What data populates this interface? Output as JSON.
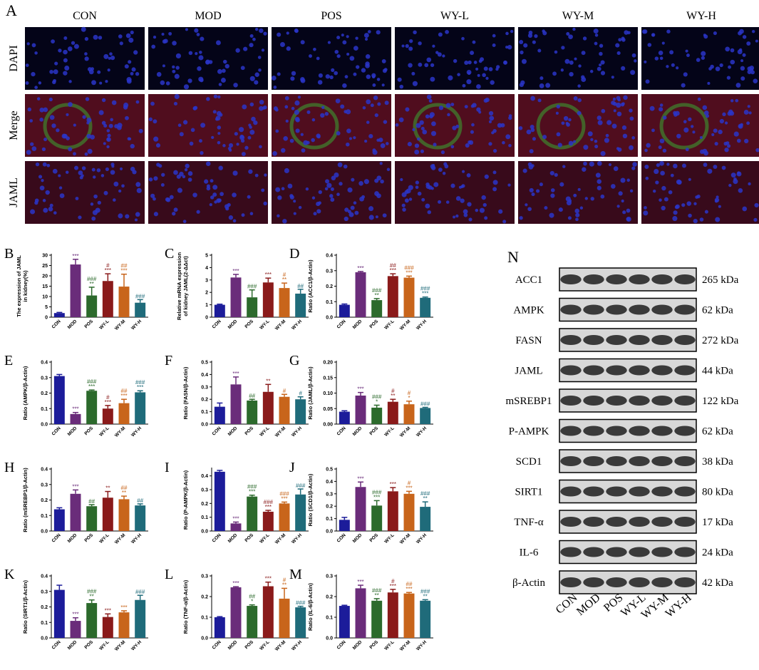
{
  "panel_a": {
    "label": "A",
    "columns": [
      "CON",
      "MOD",
      "POS",
      "WY-L",
      "WY-M",
      "WY-H"
    ],
    "rows": [
      "DAPI",
      "Merge",
      "JAML"
    ]
  },
  "chart_data": [
    {
      "type": "bar",
      "panel_label": "B",
      "y_label": [
        "The expression of JAML",
        "in kidney(%)"
      ],
      "categories": [
        "CON",
        "MOD",
        "POS",
        "WY-L",
        "WY-M",
        "WY-H"
      ],
      "colors": [
        "#1c1c9a",
        "#6a2c7a",
        "#2c6a2c",
        "#8a1a1a",
        "#c8651b",
        "#1f6b7a"
      ],
      "values": [
        2,
        25.5,
        10.5,
        17.5,
        14.8,
        7
      ],
      "errors": [
        0.3,
        2.5,
        4,
        3.5,
        6,
        1.5
      ],
      "annotations": [
        [],
        [
          "***"
        ],
        [
          "###",
          "**"
        ],
        [
          "#",
          "***"
        ],
        [
          "##",
          "***"
        ],
        [
          "###"
        ]
      ],
      "ylim": [
        0,
        30
      ],
      "yticks": [
        0,
        5,
        10,
        15,
        20,
        25,
        30
      ]
    },
    {
      "type": "bar",
      "panel_label": "C",
      "y_label": [
        "Relative mRNA expression",
        "of kidney JAML(2-ΔΔct)"
      ],
      "categories": [
        "CON",
        "MOD",
        "POS",
        "WY-L",
        "WY-M",
        "WY-H"
      ],
      "colors": [
        "#1c1c9a",
        "#6a2c7a",
        "#2c6a2c",
        "#8a1a1a",
        "#c8651b",
        "#1f6b7a"
      ],
      "values": [
        1.0,
        3.2,
        1.6,
        2.8,
        2.35,
        1.9
      ],
      "errors": [
        0.05,
        0.25,
        0.6,
        0.35,
        0.4,
        0.35
      ],
      "annotations": [
        [],
        [
          "***"
        ],
        [
          "###"
        ],
        [
          "***"
        ],
        [
          "#",
          "**"
        ],
        [
          "##"
        ]
      ],
      "ylim": [
        0,
        5
      ],
      "yticks": [
        0,
        1,
        2,
        3,
        4,
        5
      ]
    },
    {
      "type": "bar",
      "panel_label": "D",
      "y_label": [
        "Ratio (ACC1/β-Actin)"
      ],
      "categories": [
        "CON",
        "MOD",
        "POS",
        "WY-L",
        "WY-M",
        "WY-H"
      ],
      "colors": [
        "#1c1c9a",
        "#6a2c7a",
        "#2c6a2c",
        "#8a1a1a",
        "#c8651b",
        "#1f6b7a"
      ],
      "values": [
        0.08,
        0.29,
        0.11,
        0.265,
        0.255,
        0.125
      ],
      "errors": [
        0.005,
        0.005,
        0.01,
        0.015,
        0.01,
        0.005
      ],
      "annotations": [
        [],
        [
          "***"
        ],
        [
          "###",
          "**"
        ],
        [
          "##",
          "***"
        ],
        [
          "###",
          "***"
        ],
        [
          "###",
          "***"
        ]
      ],
      "ylim": [
        0,
        0.4
      ],
      "yticks": [
        {
          "value": 0,
          "label": "0.0"
        },
        0.1,
        0.2,
        0.3,
        0.4
      ]
    },
    {
      "type": "bar",
      "panel_label": "E",
      "y_label": [
        "Ratio (AMPK/β-Actin)"
      ],
      "categories": [
        "CON",
        "MOD",
        "POS",
        "WY-L",
        "WY-M",
        "WY-H"
      ],
      "colors": [
        "#1c1c9a",
        "#6a2c7a",
        "#2c6a2c",
        "#8a1a1a",
        "#c8651b",
        "#1f6b7a"
      ],
      "values": [
        0.31,
        0.065,
        0.215,
        0.1,
        0.135,
        0.205
      ],
      "errors": [
        0.01,
        0.01,
        0.005,
        0.02,
        0.025,
        0.01
      ],
      "annotations": [
        [],
        [
          "***"
        ],
        [
          "###",
          "***"
        ],
        [
          "#",
          "***"
        ],
        [
          "##",
          "***"
        ],
        [
          "###",
          "***"
        ]
      ],
      "ylim": [
        0,
        0.4
      ],
      "yticks": [
        {
          "value": 0,
          "label": "0.0"
        },
        0.1,
        0.2,
        0.3,
        0.4
      ]
    },
    {
      "type": "bar",
      "panel_label": "F",
      "y_label": [
        "Ratio (FASN/β-Actin)"
      ],
      "categories": [
        "CON",
        "MOD",
        "POS",
        "WY-L",
        "WY-M",
        "WY-H"
      ],
      "colors": [
        "#1c1c9a",
        "#6a2c7a",
        "#2c6a2c",
        "#8a1a1a",
        "#c8651b",
        "#1f6b7a"
      ],
      "values": [
        0.14,
        0.32,
        0.19,
        0.26,
        0.22,
        0.2
      ],
      "errors": [
        0.03,
        0.06,
        0.01,
        0.06,
        0.02,
        0.02
      ],
      "annotations": [
        [],
        [
          "***"
        ],
        [
          "##"
        ],
        [
          "**"
        ],
        [
          "#"
        ],
        [
          "#"
        ]
      ],
      "ylim": [
        0,
        0.5
      ],
      "yticks": [
        {
          "value": 0,
          "label": "0.0"
        },
        0.1,
        0.2,
        0.3,
        0.4,
        0.5
      ]
    },
    {
      "type": "bar",
      "panel_label": "G",
      "y_label": [
        "Ratio (JAML/β-Actin)"
      ],
      "categories": [
        "CON",
        "MOD",
        "POS",
        "WY-L",
        "WY-M",
        "WY-H"
      ],
      "colors": [
        "#1c1c9a",
        "#6a2c7a",
        "#2c6a2c",
        "#8a1a1a",
        "#c8651b",
        "#1f6b7a"
      ],
      "values": [
        0.04,
        0.092,
        0.053,
        0.072,
        0.064,
        0.052
      ],
      "errors": [
        0.003,
        0.01,
        0.008,
        0.008,
        0.01,
        0.002
      ],
      "annotations": [
        [],
        [
          "***"
        ],
        [
          "###",
          "*"
        ],
        [
          "#",
          "**"
        ],
        [
          "#",
          "*"
        ],
        [
          "###"
        ]
      ],
      "ylim": [
        0,
        0.2
      ],
      "yticks": [
        {
          "value": 0,
          "label": "0.00"
        },
        0.05,
        {
          "value": 0.1,
          "label": "0.10"
        },
        0.15,
        {
          "value": 0.2,
          "label": "0.20"
        }
      ]
    },
    {
      "type": "bar",
      "panel_label": "H",
      "y_label": [
        "Ratio (mSREBP1/β-Actin)"
      ],
      "categories": [
        "CON",
        "MOD",
        "POS",
        "WY-L",
        "WY-M",
        "WY-H"
      ],
      "colors": [
        "#1c1c9a",
        "#6a2c7a",
        "#2c6a2c",
        "#8a1a1a",
        "#c8651b",
        "#1f6b7a"
      ],
      "values": [
        0.14,
        0.24,
        0.16,
        0.215,
        0.205,
        0.165
      ],
      "errors": [
        0.01,
        0.025,
        0.01,
        0.04,
        0.02,
        0.01
      ],
      "annotations": [
        [],
        [
          "***"
        ],
        [
          "##"
        ],
        [
          "**"
        ],
        [
          "##",
          "**"
        ],
        [
          "##"
        ]
      ],
      "ylim": [
        0,
        0.4
      ],
      "yticks": [
        {
          "value": 0,
          "label": "0.0"
        },
        0.1,
        0.2,
        0.3,
        0.4
      ]
    },
    {
      "type": "bar",
      "panel_label": "I",
      "y_label": [
        "Ratio (P-AMPK/β-Actin)"
      ],
      "categories": [
        "CON",
        "MOD",
        "POS",
        "WY-L",
        "WY-M",
        "WY-H"
      ],
      "colors": [
        "#1c1c9a",
        "#6a2c7a",
        "#2c6a2c",
        "#8a1a1a",
        "#c8651b",
        "#1f6b7a"
      ],
      "values": [
        0.43,
        0.055,
        0.25,
        0.14,
        0.2,
        0.265
      ],
      "errors": [
        0.01,
        0.01,
        0.01,
        0.01,
        0.01,
        0.04
      ],
      "annotations": [
        [],
        [
          "***"
        ],
        [
          "###",
          "***"
        ],
        [
          "###",
          "***"
        ],
        [
          "###",
          "***"
        ],
        [
          "###"
        ]
      ],
      "ylim": [
        0,
        0.45
      ],
      "yticks": [
        {
          "value": 0,
          "label": "0.0"
        },
        0.1,
        0.2,
        0.3,
        0.4
      ]
    },
    {
      "type": "bar",
      "panel_label": "J",
      "y_label": [
        "Ratio (SCD1/β-Actin)"
      ],
      "categories": [
        "CON",
        "MOD",
        "POS",
        "WY-L",
        "WY-M",
        "WY-H"
      ],
      "colors": [
        "#1c1c9a",
        "#6a2c7a",
        "#2c6a2c",
        "#8a1a1a",
        "#c8651b",
        "#1f6b7a"
      ],
      "values": [
        0.09,
        0.355,
        0.205,
        0.32,
        0.3,
        0.195
      ],
      "errors": [
        0.02,
        0.04,
        0.04,
        0.03,
        0.02,
        0.04
      ],
      "annotations": [
        [],
        [
          "***"
        ],
        [
          "###",
          "***"
        ],
        [
          "***"
        ],
        [
          "#",
          "***"
        ],
        [
          "###",
          "**"
        ]
      ],
      "ylim": [
        0,
        0.5
      ],
      "yticks": [
        {
          "value": 0,
          "label": "0.0"
        },
        0.1,
        0.2,
        0.3,
        0.4,
        0.5
      ]
    },
    {
      "type": "bar",
      "panel_label": "K",
      "y_label": [
        "Ratio (SIRT1/β-Actin)"
      ],
      "categories": [
        "CON",
        "MOD",
        "POS",
        "WY-L",
        "WY-M",
        "WY-H"
      ],
      "colors": [
        "#1c1c9a",
        "#6a2c7a",
        "#2c6a2c",
        "#8a1a1a",
        "#c8651b",
        "#1f6b7a"
      ],
      "values": [
        0.31,
        0.11,
        0.225,
        0.135,
        0.165,
        0.245
      ],
      "errors": [
        0.03,
        0.02,
        0.02,
        0.02,
        0.01,
        0.03
      ],
      "annotations": [
        [],
        [
          "***"
        ],
        [
          "###",
          "**"
        ],
        [
          "***"
        ],
        [
          "***"
        ],
        [
          "###"
        ]
      ],
      "ylim": [
        0,
        0.4
      ],
      "yticks": [
        {
          "value": 0,
          "label": "0.0"
        },
        0.1,
        0.2,
        0.3,
        0.4
      ]
    },
    {
      "type": "bar",
      "panel_label": "L",
      "y_label": [
        "Ratio (TNF-α/β-Actin)"
      ],
      "categories": [
        "CON",
        "MOD",
        "POS",
        "WY-L",
        "WY-M",
        "WY-H"
      ],
      "colors": [
        "#1c1c9a",
        "#6a2c7a",
        "#2c6a2c",
        "#8a1a1a",
        "#c8651b",
        "#1f6b7a"
      ],
      "values": [
        0.1,
        0.245,
        0.155,
        0.25,
        0.19,
        0.148
      ],
      "errors": [
        0.003,
        0.003,
        0.005,
        0.02,
        0.05,
        0.005
      ],
      "annotations": [
        [],
        [
          "***"
        ],
        [
          "##",
          "*"
        ],
        [
          "***"
        ],
        [
          "#",
          "**"
        ],
        [
          "###"
        ]
      ],
      "ylim": [
        0,
        0.3
      ],
      "yticks": [
        {
          "value": 0,
          "label": "0.0"
        },
        0.1,
        0.2,
        0.3
      ]
    },
    {
      "type": "bar",
      "panel_label": "M",
      "y_label": [
        "Ratio (IL-6/β-Actin)"
      ],
      "categories": [
        "CON",
        "MOD",
        "POS",
        "WY-L",
        "WY-M",
        "WY-H"
      ],
      "colors": [
        "#1c1c9a",
        "#6a2c7a",
        "#2c6a2c",
        "#8a1a1a",
        "#c8651b",
        "#1f6b7a"
      ],
      "values": [
        0.155,
        0.24,
        0.18,
        0.22,
        0.215,
        0.18
      ],
      "errors": [
        0.003,
        0.015,
        0.01,
        0.015,
        0.005,
        0.005
      ],
      "annotations": [
        [],
        [
          "***"
        ],
        [
          "###",
          "**"
        ],
        [
          "#",
          "***"
        ],
        [
          "##",
          "***"
        ],
        [
          "###",
          "**"
        ]
      ],
      "ylim": [
        0,
        0.3
      ],
      "yticks": [
        {
          "value": 0,
          "label": "0.0"
        },
        0.1,
        0.2,
        0.3
      ]
    }
  ],
  "panel_n": {
    "label": "N",
    "lanes": [
      "CON",
      "MOD",
      "POS",
      "WY-L",
      "WY-M",
      "WY-H"
    ],
    "proteins": [
      {
        "name": "ACC1",
        "weight": "265 kDa"
      },
      {
        "name": "AMPK",
        "weight": "62 kDa"
      },
      {
        "name": "FASN",
        "weight": "272 kDa"
      },
      {
        "name": "JAML",
        "weight": "44 kDa"
      },
      {
        "name": "mSREBP1",
        "weight": "122 kDa"
      },
      {
        "name": "P-AMPK",
        "weight": "62 kDa"
      },
      {
        "name": "SCD1",
        "weight": "38 kDa"
      },
      {
        "name": "SIRT1",
        "weight": "80 kDa"
      },
      {
        "name": "TNF-α",
        "weight": "17 kDa"
      },
      {
        "name": "IL-6",
        "weight": "24 kDa"
      },
      {
        "name": "β-Actin",
        "weight": "42 kDa"
      }
    ]
  }
}
